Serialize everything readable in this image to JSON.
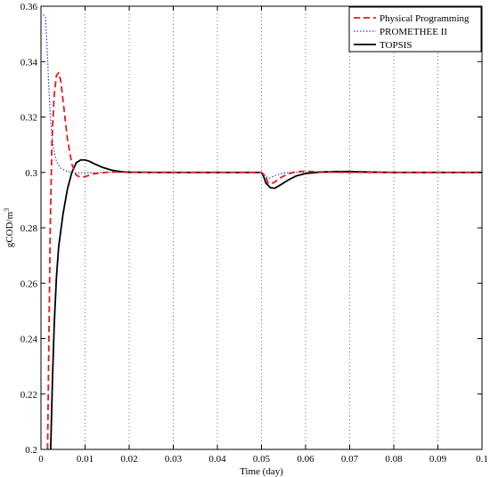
{
  "chart_data": {
    "type": "line",
    "title": "",
    "xlabel": "Time (day)",
    "ylabel": "gCOD/m",
    "ylabel_superscript": "3",
    "xlim": [
      0,
      0.1
    ],
    "ylim": [
      0.2,
      0.36
    ],
    "xticks": [
      "0",
      "0.01",
      "0.02",
      "0.03",
      "0.04",
      "0.05",
      "0.06",
      "0.07",
      "0.08",
      "0.09",
      "0.1"
    ],
    "yticks": [
      "0.2",
      "0.22",
      "0.24",
      "0.26",
      "0.28",
      "0.3",
      "0.32",
      "0.34",
      "0.36"
    ],
    "x_grid": true,
    "y_grid": false,
    "legend_position": "top-right",
    "series": [
      {
        "name": "Physical Programming",
        "color": "#e8191e",
        "style": "dashed",
        "x": [
          0.0015,
          0.0018,
          0.0021,
          0.0025,
          0.003,
          0.0035,
          0.004,
          0.0045,
          0.005,
          0.006,
          0.007,
          0.008,
          0.009,
          0.01,
          0.012,
          0.014,
          0.016,
          0.02,
          0.03,
          0.04,
          0.05,
          0.051,
          0.0515,
          0.052,
          0.053,
          0.054,
          0.056,
          0.058,
          0.06,
          0.065,
          0.07,
          0.08,
          0.09,
          0.1
        ],
        "y": [
          0.2,
          0.24,
          0.28,
          0.312,
          0.328,
          0.335,
          0.336,
          0.333,
          0.326,
          0.312,
          0.303,
          0.299,
          0.2982,
          0.2985,
          0.2995,
          0.2999,
          0.3002,
          0.3001,
          0.3,
          0.3,
          0.3,
          0.2985,
          0.2962,
          0.2958,
          0.2965,
          0.2978,
          0.2995,
          0.3003,
          0.3004,
          0.3001,
          0.3,
          0.3,
          0.3,
          0.3
        ]
      },
      {
        "name": "PROMETHEE II",
        "color": "#2b3ed6",
        "style": "dotted",
        "x": [
          0.0005,
          0.001,
          0.0014,
          0.0018,
          0.0022,
          0.0028,
          0.0035,
          0.0045,
          0.006,
          0.008,
          0.01,
          0.015,
          0.02,
          0.03,
          0.04,
          0.05,
          0.0505,
          0.051,
          0.0515,
          0.052,
          0.053,
          0.055,
          0.058,
          0.06,
          0.065,
          0.07,
          0.08,
          0.09,
          0.1
        ],
        "y": [
          0.357,
          0.356,
          0.345,
          0.33,
          0.318,
          0.309,
          0.304,
          0.3015,
          0.3003,
          0.2998,
          0.2999,
          0.3,
          0.3,
          0.3,
          0.3,
          0.3,
          0.2995,
          0.2985,
          0.298,
          0.298,
          0.2988,
          0.2998,
          0.3001,
          0.3,
          0.3,
          0.3,
          0.3,
          0.3,
          0.3
        ]
      },
      {
        "name": "TOPSIS",
        "color": "#000000",
        "style": "solid",
        "x": [
          0.0022,
          0.0026,
          0.003,
          0.0035,
          0.004,
          0.005,
          0.006,
          0.007,
          0.008,
          0.009,
          0.01,
          0.011,
          0.012,
          0.014,
          0.016,
          0.018,
          0.02,
          0.025,
          0.03,
          0.04,
          0.05,
          0.0505,
          0.051,
          0.052,
          0.053,
          0.054,
          0.056,
          0.058,
          0.06,
          0.063,
          0.067,
          0.07,
          0.075,
          0.08,
          0.09,
          0.1
        ],
        "y": [
          0.2,
          0.225,
          0.245,
          0.262,
          0.273,
          0.285,
          0.294,
          0.3,
          0.3035,
          0.3045,
          0.3045,
          0.304,
          0.3032,
          0.3018,
          0.3008,
          0.3003,
          0.3001,
          0.3,
          0.3,
          0.3,
          0.3,
          0.2985,
          0.2962,
          0.2945,
          0.2943,
          0.2952,
          0.2972,
          0.2988,
          0.2996,
          0.3001,
          0.3003,
          0.3003,
          0.3001,
          0.3,
          0.3,
          0.3
        ]
      }
    ]
  }
}
